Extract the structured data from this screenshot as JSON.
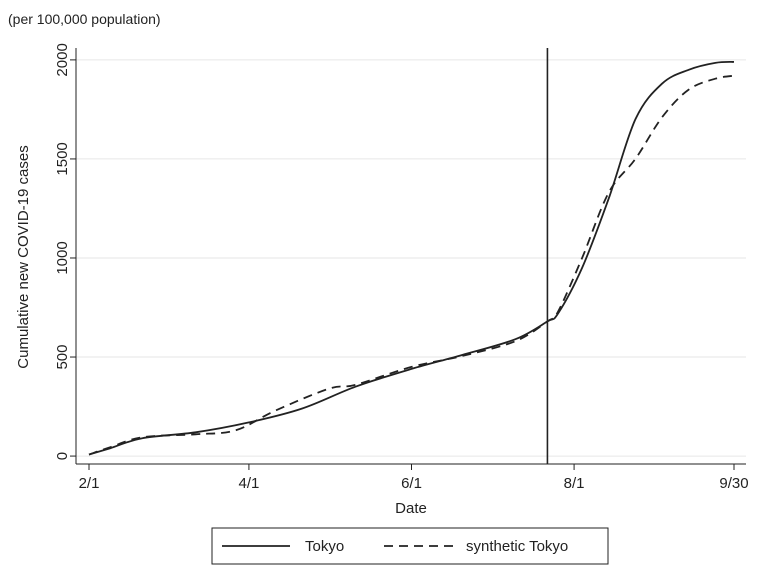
{
  "chart_data": {
    "type": "line",
    "title": "",
    "note": "(per 100,000 population)",
    "xlabel": "Date",
    "ylabel": "Cumulative new COVID-19 cases",
    "x_ticks": [
      "2/1",
      "4/1",
      "6/1",
      "8/1",
      "9/30"
    ],
    "x_tick_values": [
      0,
      60,
      121,
      182,
      242
    ],
    "xlim": [
      0,
      242
    ],
    "y_ticks": [
      "0",
      "500",
      "1000",
      "1500",
      "2000"
    ],
    "y_tick_values": [
      0,
      500,
      1000,
      1500,
      2000
    ],
    "ylim": [
      -40,
      2060
    ],
    "grid": "horizontal",
    "reference_line": {
      "x": 172
    },
    "legend_position": "bottom",
    "series": [
      {
        "name": "Tokyo",
        "style": "solid",
        "color": "#222222",
        "x": [
          0,
          8,
          20,
          40,
          60,
          80,
          100,
          121,
          140,
          160,
          172,
          176,
          185,
          195,
          205,
          215,
          225,
          235,
          242
        ],
        "y": [
          8,
          40,
          90,
          120,
          170,
          240,
          350,
          440,
          510,
          590,
          680,
          720,
          950,
          1300,
          1700,
          1880,
          1950,
          1985,
          1990
        ]
      },
      {
        "name": "synthetic Tokyo",
        "style": "dashed",
        "color": "#222222",
        "x": [
          0,
          8,
          20,
          40,
          55,
          70,
          90,
          100,
          121,
          140,
          160,
          172,
          176,
          185,
          195,
          205,
          215,
          225,
          235,
          242
        ],
        "y": [
          8,
          45,
          95,
          110,
          130,
          230,
          340,
          360,
          450,
          505,
          580,
          680,
          730,
          1000,
          1330,
          1500,
          1710,
          1850,
          1905,
          1920
        ]
      }
    ]
  }
}
